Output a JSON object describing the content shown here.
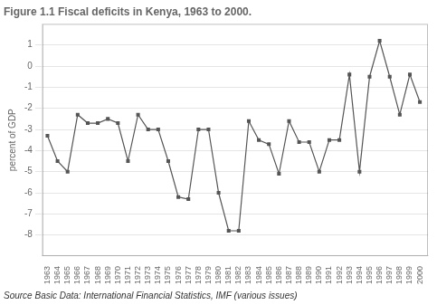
{
  "chart_data": {
    "type": "line",
    "title": "Figure 1.1 Fiscal deficits in Kenya, 1963 to 2000.",
    "ylabel": "percent of GDP",
    "source": "Source Basic Data: International Financial Statistics, IMF (various issues)",
    "x": [
      1963,
      1964,
      1965,
      1966,
      1967,
      1968,
      1969,
      1970,
      1971,
      1972,
      1973,
      1974,
      1975,
      1976,
      1977,
      1978,
      1979,
      1980,
      1981,
      1982,
      1983,
      1984,
      1985,
      1986,
      1987,
      1988,
      1989,
      1990,
      1991,
      1992,
      1993,
      1994,
      1995,
      1996,
      1997,
      1998,
      1999,
      2000
    ],
    "values": [
      -3.3,
      -4.5,
      -5.0,
      -2.3,
      -2.7,
      -2.7,
      -2.5,
      -2.7,
      -4.5,
      -2.3,
      -3.0,
      -3.0,
      -4.5,
      -6.2,
      -6.3,
      -3.0,
      -3.0,
      -6.0,
      -7.8,
      -7.8,
      -2.6,
      -3.5,
      -3.7,
      -5.1,
      -2.6,
      -3.6,
      -3.6,
      -5.0,
      -3.5,
      -3.5,
      -0.4,
      -5.0,
      -0.5,
      1.2,
      -0.5,
      -2.3,
      -0.4,
      -1.7
    ],
    "color": "#555555",
    "marker": "square",
    "xlim": [
      1962.5,
      2000.8
    ],
    "xticks": [
      1963,
      1964,
      1965,
      1966,
      1967,
      1968,
      1969,
      1970,
      1971,
      1972,
      1973,
      1974,
      1975,
      1976,
      1977,
      1978,
      1979,
      1980,
      1981,
      1982,
      1983,
      1984,
      1985,
      1986,
      1987,
      1988,
      1989,
      1990,
      1991,
      1992,
      1993,
      1994,
      1995,
      1996,
      1997,
      1998,
      1999,
      2000
    ],
    "ylim": [
      -9,
      2
    ],
    "yticks": [
      1,
      0,
      -1,
      -2,
      -3,
      -4,
      -5,
      -6,
      -7,
      -8
    ],
    "grid": "y"
  }
}
